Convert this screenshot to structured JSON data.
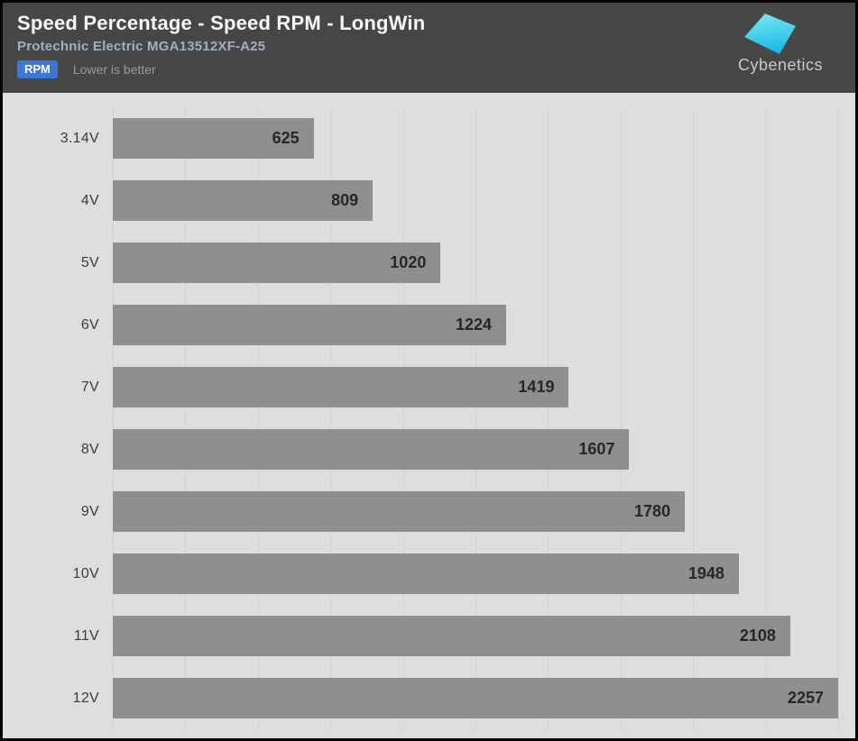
{
  "header": {
    "title": "Speed Percentage - Speed RPM - LongWin",
    "subtitle": "Protechnic Electric MGA13512XF-A25",
    "badge": "RPM",
    "note": "Lower is better",
    "logo_text": "Cybenetics"
  },
  "colors": {
    "header_bg": "#464646",
    "title_color": "#f8f8f8",
    "subtitle_color": "#a2b0c2",
    "accent_blue": "#3b76d9",
    "note_color": "#9b9b9b",
    "logo_text_color": "#c9c9c9",
    "logo_top": "#7fe9f0",
    "logo_bottom": "#1cb9e8",
    "chart_bg": "#dedede",
    "gridline_color": "#d2d2d2",
    "bar_color": "#8f8f8f",
    "value_color": "#262626",
    "category_color": "#3b3b3b"
  },
  "chart_data": {
    "type": "bar",
    "orientation": "horizontal",
    "title": "Speed Percentage - Speed RPM - LongWin",
    "subtitle": "Protechnic Electric MGA13512XF-A25",
    "unit": "RPM",
    "note": "Lower is better",
    "categories": [
      "3.14V",
      "4V",
      "5V",
      "6V",
      "7V",
      "8V",
      "9V",
      "10V",
      "11V",
      "12V"
    ],
    "values": [
      625,
      809,
      1020,
      1224,
      1419,
      1607,
      1780,
      1948,
      2108,
      2257
    ],
    "xlim": [
      0,
      2257
    ],
    "grid": true,
    "grid_divisions": 10,
    "legend": "none",
    "value_labels": "inside-end"
  }
}
